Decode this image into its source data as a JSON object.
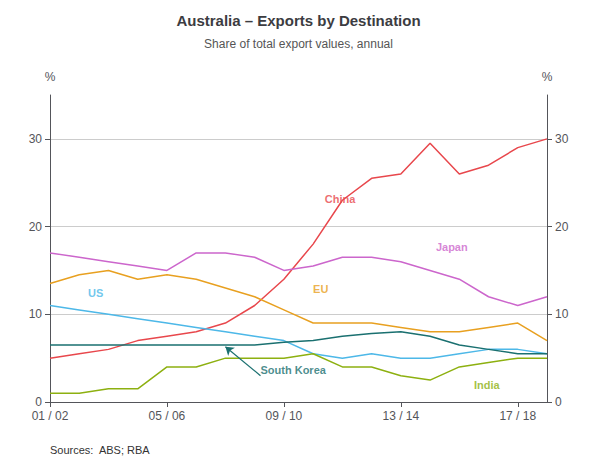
{
  "chart_data": {
    "type": "line",
    "title": "Australia – Exports by Destination",
    "subtitle": "Share of total export values, annual",
    "source": "Sources:  ABS; RBA",
    "ylabel": "%",
    "y2label": "%",
    "x": [
      0,
      1,
      2,
      3,
      4,
      5,
      6,
      7,
      8,
      9,
      10,
      11,
      12,
      13,
      14,
      15,
      16,
      17
    ],
    "xlim": [
      0,
      17
    ],
    "xticks": [
      {
        "value": 0,
        "label": "01 / 02"
      },
      {
        "value": 4,
        "label": "05 / 06"
      },
      {
        "value": 8,
        "label": "09 / 10"
      },
      {
        "value": 12,
        "label": "13 / 14"
      },
      {
        "value": 16,
        "label": "17 / 18"
      }
    ],
    "ylim": [
      0,
      35
    ],
    "yticks": [
      0,
      10,
      20,
      30
    ],
    "y2lim": [
      0,
      35
    ],
    "y2ticks": [
      0,
      10,
      20,
      30
    ],
    "grid": true,
    "series": [
      {
        "name": "China",
        "color": "#e8474c",
        "values": [
          5,
          5.5,
          6,
          7,
          7.5,
          8,
          9,
          11,
          14,
          18,
          23,
          25.5,
          26,
          29.5,
          26,
          27,
          29,
          30
        ]
      },
      {
        "name": "Japan",
        "color": "#cc66cc",
        "values": [
          17,
          16.5,
          16,
          15.5,
          15,
          17,
          17,
          16.5,
          15,
          15.5,
          16.5,
          16.5,
          16,
          15,
          14,
          12,
          11,
          12
        ]
      },
      {
        "name": "EU",
        "color": "#e8a020",
        "values": [
          13.5,
          14.5,
          15,
          14,
          14.5,
          14,
          13,
          12,
          10.5,
          9,
          9,
          9,
          8.5,
          8,
          8,
          8.5,
          9,
          7
        ]
      },
      {
        "name": "US",
        "color": "#4db8e8",
        "values": [
          11,
          10.5,
          10,
          9.5,
          9,
          8.5,
          8,
          7.5,
          7,
          5.5,
          5,
          5.5,
          5,
          5,
          5.5,
          6,
          6,
          5.5
        ]
      },
      {
        "name": "South Korea",
        "color": "#1a7070",
        "values": [
          6.5,
          6.5,
          6.5,
          6.5,
          6.5,
          6.5,
          6.5,
          6.5,
          6.8,
          7,
          7.5,
          7.8,
          8,
          7.5,
          6.5,
          6,
          5.5,
          5.5
        ]
      },
      {
        "name": "India",
        "color": "#8db010",
        "values": [
          1,
          1,
          1.5,
          1.5,
          4,
          4,
          5,
          5,
          5,
          5.5,
          4,
          4,
          3,
          2.5,
          4,
          4.5,
          5,
          5
        ]
      }
    ],
    "annotations": [
      {
        "text": "China",
        "x": 9.4,
        "y": 22.5
      },
      {
        "text": "Japan",
        "x": 13.2,
        "y": 17.0
      },
      {
        "text": "EU",
        "x": 9.0,
        "y": 12.2
      },
      {
        "text": "US",
        "x": 1.3,
        "y": 11.8
      },
      {
        "text": "South Korea",
        "x": 7.2,
        "y": 3.0,
        "arrow_x": 6.0,
        "arrow_y": 6.3
      },
      {
        "text": "India",
        "x": 14.5,
        "y": 1.3
      }
    ]
  }
}
